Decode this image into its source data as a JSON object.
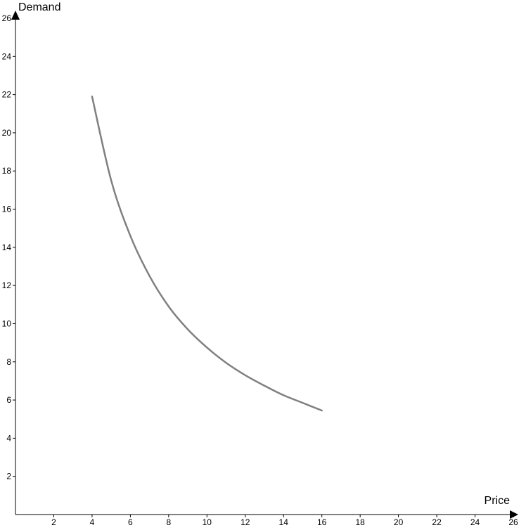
{
  "chart_data": {
    "type": "line",
    "title": "",
    "xlabel": "Price",
    "ylabel": "Demand",
    "xlim": [
      0,
      26
    ],
    "ylim": [
      0,
      26
    ],
    "x_ticks": [
      2,
      4,
      6,
      8,
      10,
      12,
      14,
      16,
      18,
      20,
      22,
      24,
      26
    ],
    "y_ticks": [
      2,
      4,
      6,
      8,
      10,
      12,
      14,
      16,
      18,
      20,
      22,
      24,
      26
    ],
    "grid": false,
    "series": [
      {
        "x": [
          4,
          5,
          6,
          7,
          8,
          9,
          10,
          11,
          12,
          13,
          14,
          15,
          16
        ],
        "y": [
          21.9,
          17.5,
          14.6,
          12.5,
          10.9,
          9.7,
          8.75,
          7.95,
          7.3,
          6.75,
          6.25,
          5.85,
          5.45
        ],
        "color": "#808080"
      }
    ]
  }
}
